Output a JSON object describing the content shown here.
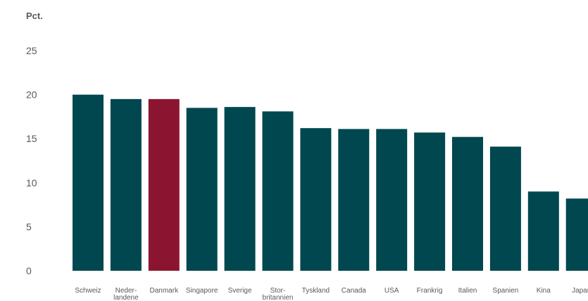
{
  "chart_data": {
    "type": "bar",
    "ylabel": "Pct.",
    "ylim": [
      0,
      25
    ],
    "yticks": [
      "0",
      "5",
      "10",
      "15",
      "20",
      "25"
    ],
    "grid": false,
    "legend": "none",
    "categories": [
      [
        "Schweiz"
      ],
      [
        "Neder-",
        "landene"
      ],
      [
        "Danmark"
      ],
      [
        "Singapore"
      ],
      [
        "Sverige"
      ],
      [
        "Stor-",
        "britannien"
      ],
      [
        "Tyskland"
      ],
      [
        "Canada"
      ],
      [
        "USA"
      ],
      [
        "Frankrig"
      ],
      [
        "Italien"
      ],
      [
        "Spanien"
      ],
      [
        "Kina"
      ],
      [
        "Japan"
      ]
    ],
    "values": [
      20.0,
      19.5,
      19.5,
      18.5,
      18.6,
      18.1,
      16.2,
      16.1,
      16.1,
      15.7,
      15.2,
      14.1,
      9.0,
      8.2
    ],
    "highlight_index": 2,
    "colors": {
      "default": "#00474F",
      "highlight": "#8B1530"
    }
  }
}
